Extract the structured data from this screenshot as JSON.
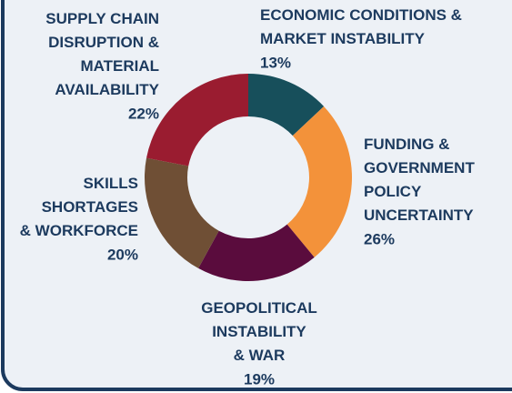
{
  "chart_data": {
    "type": "donut",
    "labels": [
      [
        "ECONOMIC CONDITIONS &",
        "MARKET INSTABILITY"
      ],
      [
        "FUNDING &",
        "GOVERNMENT",
        "POLICY",
        "UNCERTAINTY"
      ],
      [
        "GEOPOLITICAL",
        "INSTABILITY",
        "& WAR"
      ],
      [
        "SKILLS",
        "SHORTAGES",
        "& WORKFORCE"
      ],
      [
        "SUPPLY CHAIN",
        "DISRUPTION &",
        "MATERIAL",
        "AVAILABILITY"
      ]
    ],
    "values": [
      13,
      26,
      19,
      20,
      22
    ],
    "value_labels": [
      "13%",
      "26%",
      "19%",
      "20%",
      "22%"
    ],
    "colors": [
      "#174f5b",
      "#f3923a",
      "#5a0c3d",
      "#6f4f35",
      "#9a1c30"
    ]
  }
}
